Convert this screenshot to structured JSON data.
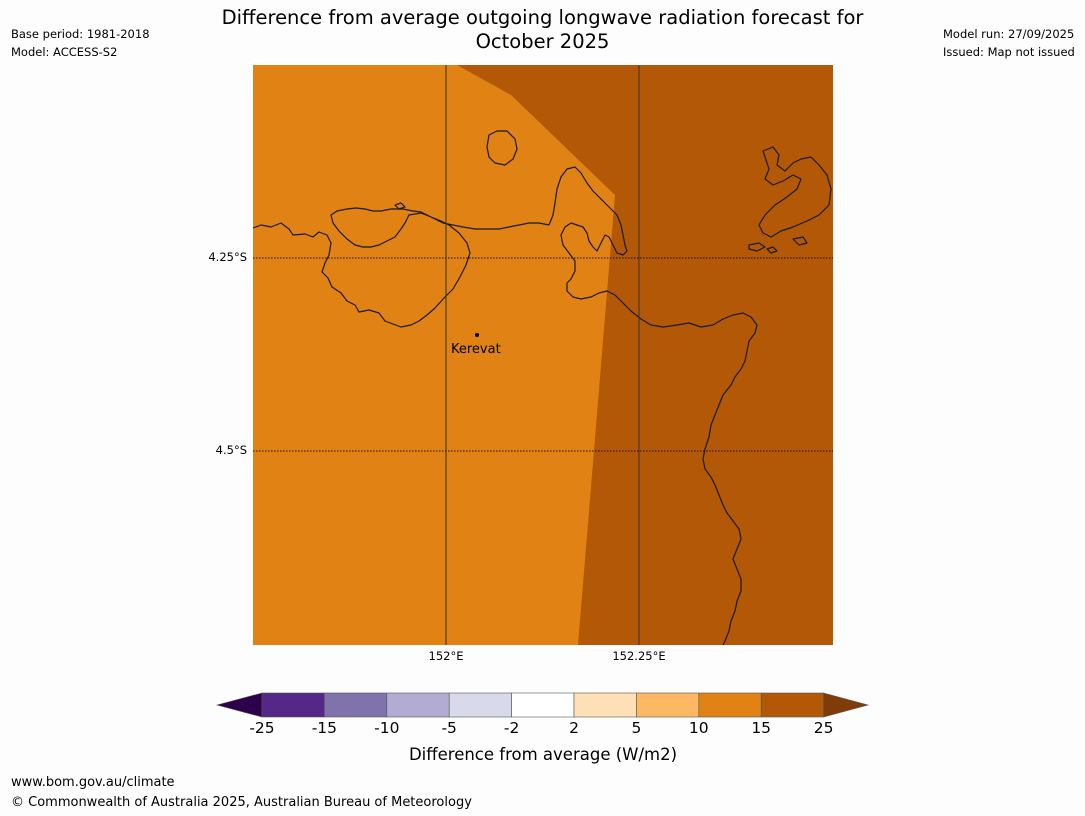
{
  "header": {
    "base_period": "Base period: 1981-2018",
    "model": "Model: ACCESS-S2",
    "model_run": "Model run: 27/09/2025",
    "issued": "Issued: Map not issued",
    "title_line1": "Difference from average outgoing longwave radiation forecast for",
    "title_line2": "October 2025"
  },
  "map": {
    "latitude_labels": [
      "4.25°S",
      "4.5°S"
    ],
    "longitude_labels": [
      "152°E",
      "152.25°E"
    ],
    "place": "Kerevat",
    "colors": {
      "region_10_15": "#e08214",
      "region_15_25": "#b35806",
      "coastline": "#1a1a1a",
      "gridline": "#222222"
    }
  },
  "legend": {
    "ticks": [
      "-25",
      "-15",
      "-10",
      "-5",
      "-2",
      "2",
      "5",
      "10",
      "15",
      "25"
    ],
    "colors": [
      "#2d004b",
      "#542788",
      "#8073ac",
      "#b2abd2",
      "#d8daeb",
      "#ffffff",
      "#fee0b6",
      "#fdb863",
      "#e08214",
      "#b35806",
      "#7f3b08"
    ],
    "label": "Difference from average (W/m2)"
  },
  "footer": {
    "url": "www.bom.gov.au/climate",
    "copyright": "© Commonwealth of Australia 2025, Australian Bureau of Meteorology"
  }
}
